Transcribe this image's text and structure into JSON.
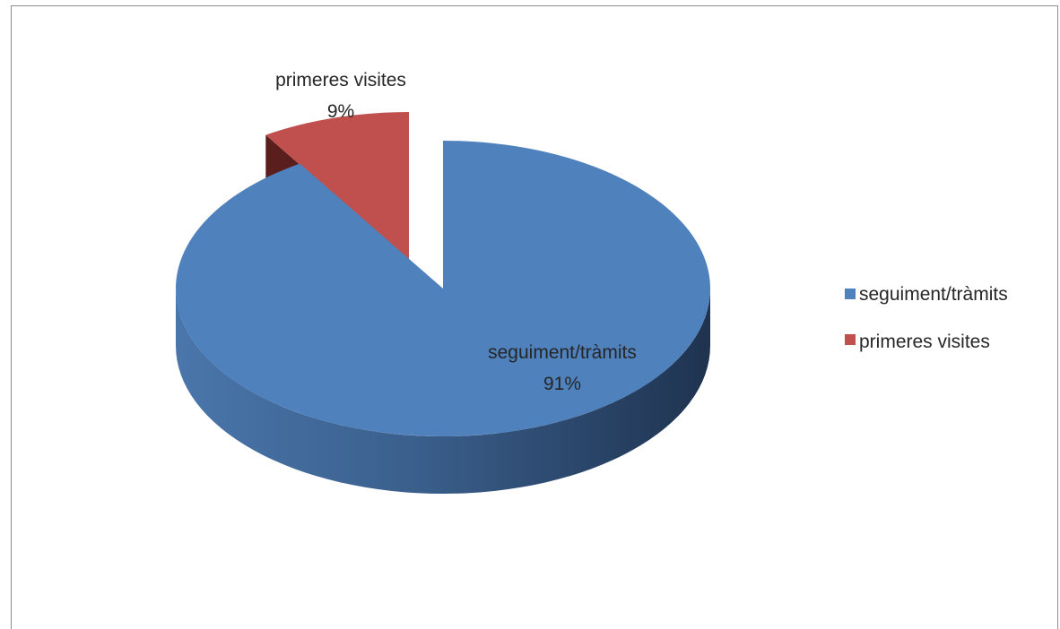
{
  "chart_data": {
    "type": "pie",
    "title": "",
    "style": "3d-exploded",
    "slices": [
      {
        "label": "seguiment/tràmits",
        "value": 91,
        "percent_label": "91%",
        "color": "#4f81bd",
        "side_color": "#2b4a6f"
      },
      {
        "label": "primeres visites",
        "value": 9,
        "percent_label": "9%",
        "color": "#c0504d",
        "side_color": "#5a1f1d"
      }
    ],
    "legend": {
      "placement": "right",
      "entries": [
        "seguiment/tràmits",
        "primeres visites"
      ]
    }
  }
}
